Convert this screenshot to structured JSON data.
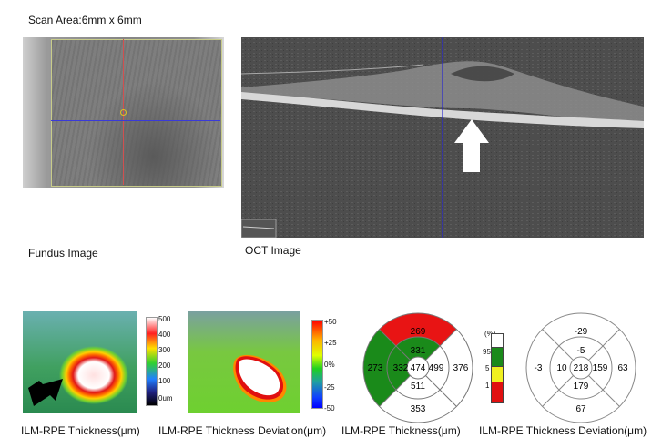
{
  "scan_area": "Scan Area:6mm x 6mm",
  "fundus": {
    "caption": "Fundus Image"
  },
  "oct": {
    "caption": "OCT Image"
  },
  "map1": {
    "caption": "ILM-RPE Thickness(μm)",
    "scale": [
      "500",
      "400",
      "300",
      "200",
      "100",
      "0um"
    ]
  },
  "map2": {
    "caption": "ILM-RPE Thickness Deviation(μm)",
    "scale": [
      "+50",
      "+25",
      "0%",
      "-25",
      "-50"
    ]
  },
  "grid1": {
    "caption": "ILM-RPE Thickness(μm)",
    "superior_outer": "269",
    "superior_inner": "331",
    "nasal_outer": "273",
    "nasal_inner": "332",
    "center": "474",
    "temporal_inner": "499",
    "temporal_outer": "376",
    "inferior_inner": "511",
    "inferior_outer": "353"
  },
  "legend": {
    "unit": "(%)",
    "levels": [
      "95",
      "5",
      "1"
    ],
    "colors": [
      "#ffffff",
      "#1a8a1a",
      "#f0f020",
      "#e01010"
    ]
  },
  "grid2": {
    "caption": "ILM-RPE Thickness Deviation(μm)",
    "superior_outer": "-29",
    "superior_inner": "-5",
    "nasal_outer": "-3",
    "nasal_inner": "10",
    "center": "218",
    "temporal_inner": "159",
    "temporal_outer": "63",
    "inferior_inner": "179",
    "inferior_outer": "67"
  }
}
